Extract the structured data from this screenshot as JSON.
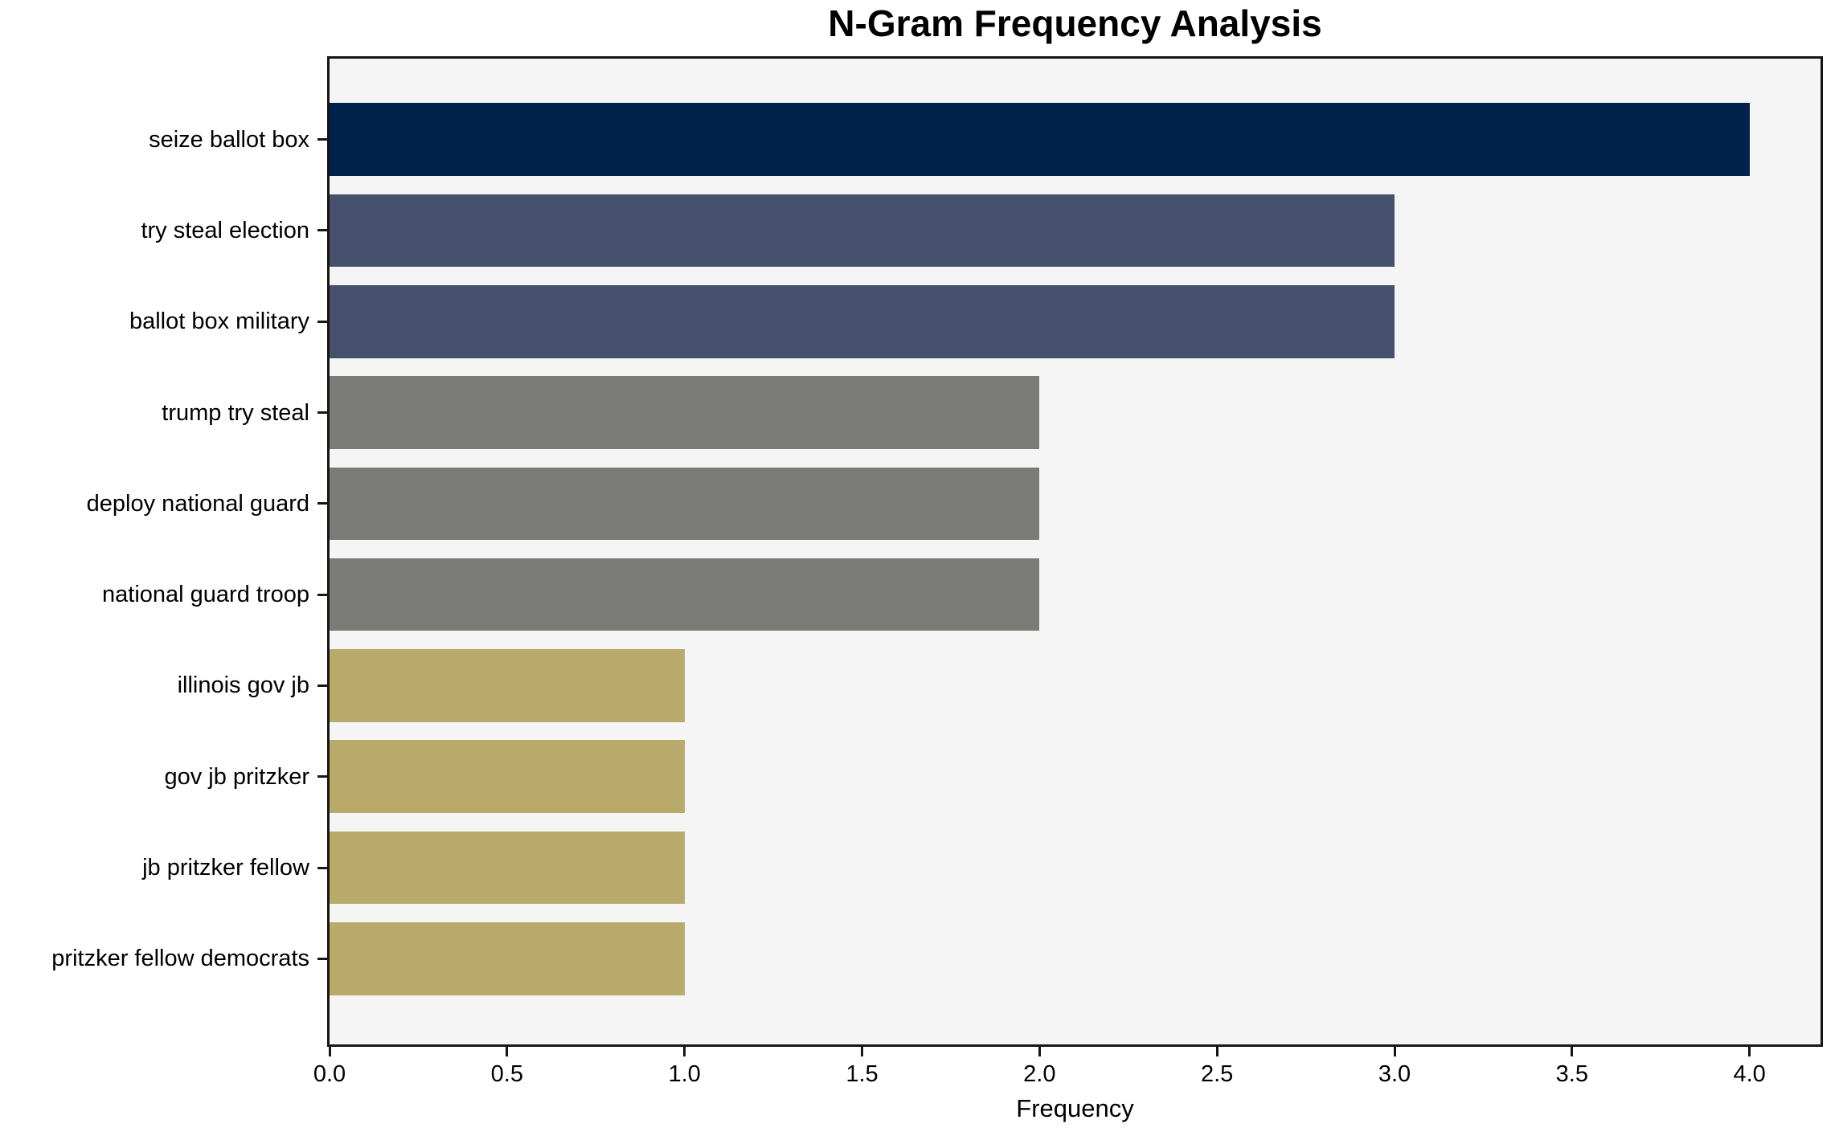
{
  "chart_data": {
    "type": "bar",
    "orientation": "horizontal",
    "title": "N-Gram Frequency Analysis",
    "xlabel": "Frequency",
    "ylabel": "",
    "categories": [
      "seize ballot box",
      "try steal election",
      "ballot box military",
      "trump try steal",
      "deploy national guard",
      "national guard troop",
      "illinois gov jb",
      "gov jb pritzker",
      "jb pritzker fellow",
      "pritzker fellow democrats"
    ],
    "values": [
      4,
      3,
      3,
      2,
      2,
      2,
      1,
      1,
      1,
      1
    ],
    "bar_colors": [
      "#00224d",
      "#45506d",
      "#45506d",
      "#7a7a77",
      "#7a7a77",
      "#7a7a77",
      "#b9aa6b",
      "#b9aa6b",
      "#b9aa6b",
      "#b9aa6b"
    ],
    "xlim": [
      0,
      4.2
    ],
    "xticks": [
      0.0,
      0.5,
      1.0,
      1.5,
      2.0,
      2.5,
      3.0,
      3.5,
      4.0
    ],
    "xtick_labels": [
      "0.0",
      "0.5",
      "1.0",
      "1.5",
      "2.0",
      "2.5",
      "3.0",
      "3.5",
      "4.0"
    ],
    "grid": false,
    "legend": null,
    "bar_width_frac": 0.8,
    "colors": {
      "plot_bg": "#f5f5f5",
      "figure_bg": "#ffffff",
      "spine": "#161616",
      "text": "#000000"
    }
  }
}
